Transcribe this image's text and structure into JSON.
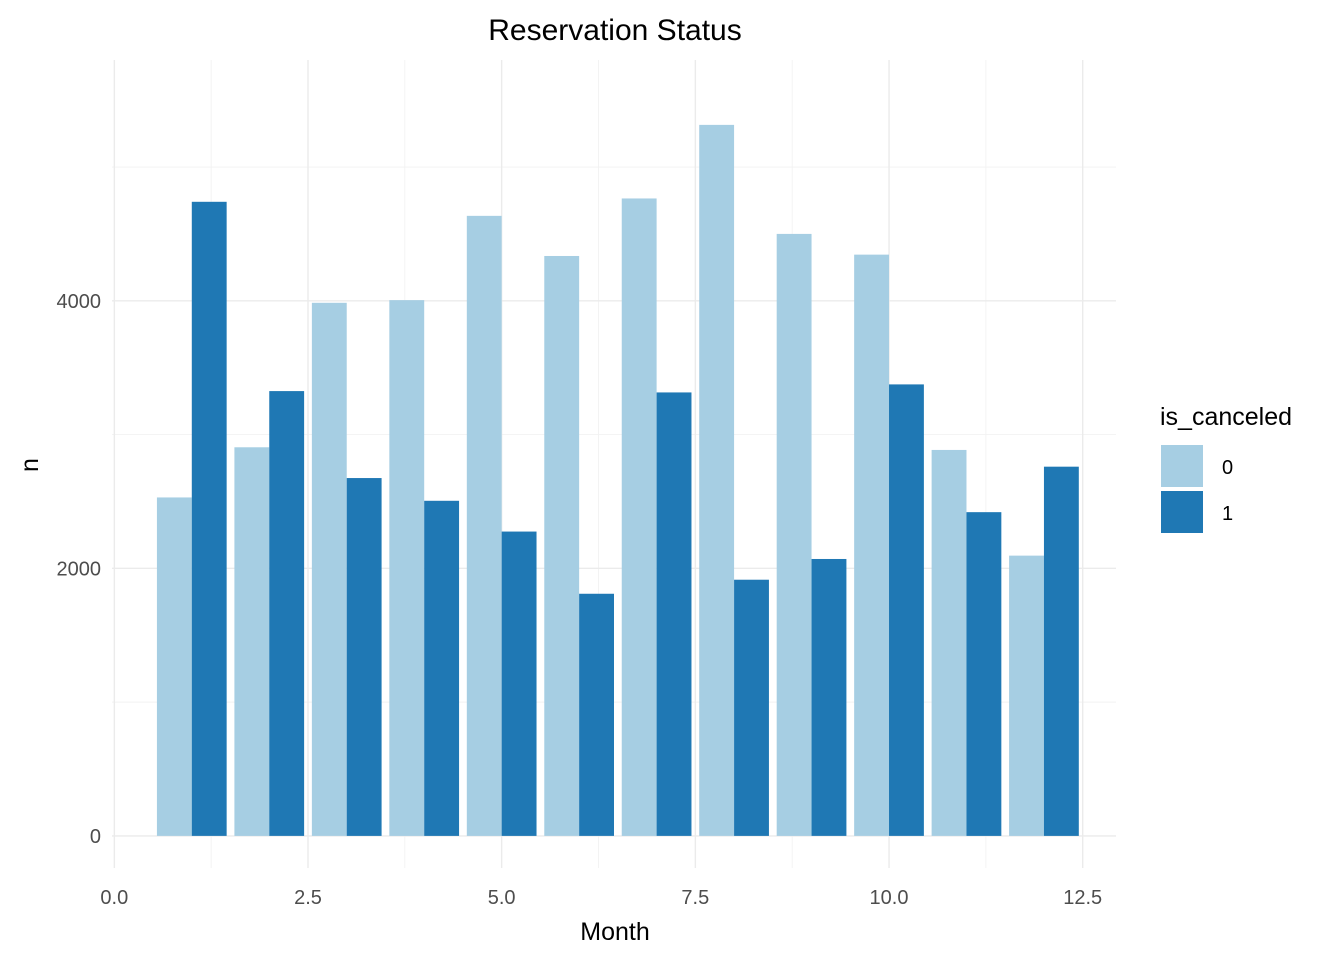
{
  "chart_data": {
    "type": "bar",
    "title": "Reservation Status",
    "xlabel": "Month",
    "ylabel": "n",
    "x": [
      1,
      2,
      3,
      4,
      5,
      6,
      7,
      8,
      9,
      10,
      11,
      12
    ],
    "series": [
      {
        "name": "0",
        "color": "#a6cee3",
        "values": [
          2530,
          2905,
          3985,
          4005,
          4635,
          4335,
          4765,
          5315,
          4500,
          4345,
          2885,
          2095
        ]
      },
      {
        "name": "1",
        "color": "#1f78b4",
        "values": [
          4740,
          3325,
          2675,
          2505,
          2275,
          1810,
          3315,
          1915,
          2070,
          3375,
          2420,
          2760
        ]
      }
    ],
    "xlim": [
      -0.03,
      12.93
    ],
    "ylim": [
      -240,
      5800
    ],
    "x_ticks": [
      0.0,
      2.5,
      5.0,
      7.5,
      10.0,
      12.5
    ],
    "x_tick_labels": [
      "0.0",
      "2.5",
      "5.0",
      "7.5",
      "10.0",
      "12.5"
    ],
    "y_ticks": [
      0,
      2000,
      4000
    ],
    "y_tick_labels": [
      "0",
      "2000",
      "4000"
    ],
    "bar_group_width": 0.9,
    "grid": true,
    "legend": {
      "title": "is_canceled",
      "position": "right"
    }
  }
}
